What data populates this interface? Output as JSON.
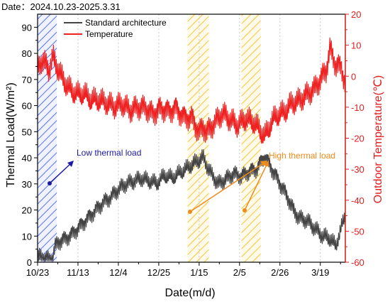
{
  "chart_data": {
    "type": "line",
    "title": "Date：2024.10.23-2025.3.31",
    "xlabel": "Date(m/d)",
    "ylabel_left": "Thermal Load(W/m²)",
    "ylabel_right": "Outdoor Temperature(℃)",
    "x_ticks": [
      "10/23",
      "11/13",
      "12/4",
      "12/25",
      "1/15",
      "2/5",
      "2/26",
      "3/19"
    ],
    "ylim_left": [
      0,
      95
    ],
    "y_ticks_left": [
      0,
      10,
      20,
      30,
      40,
      50,
      60,
      70,
      80,
      90
    ],
    "ylim_right": [
      -60,
      20
    ],
    "y_ticks_right": [
      -60,
      -50,
      -40,
      -30,
      -20,
      -10,
      0,
      10,
      20
    ],
    "x_range_days": [
      0,
      160
    ],
    "legend": {
      "placement": "top-left",
      "entries": [
        {
          "label": "Standard architecture",
          "color": "#444444"
        },
        {
          "label": "Temperature",
          "color": "#ee2222"
        }
      ]
    },
    "series": [
      {
        "name": "Standard architecture",
        "axis": "left",
        "color": "#444444",
        "x_days": [
          0,
          3,
          6,
          8,
          9,
          11,
          14,
          18,
          22,
          26,
          30,
          34,
          38,
          42,
          46,
          50,
          54,
          58,
          62,
          66,
          70,
          74,
          78,
          82,
          86,
          90,
          94,
          98,
          102,
          106,
          110,
          114,
          118,
          121,
          124,
          127,
          130,
          133,
          136,
          140,
          144,
          148,
          152,
          155,
          158,
          160
        ],
        "values": [
          2,
          2,
          1,
          2,
          6,
          8,
          9,
          11,
          14,
          17,
          20,
          23,
          25,
          28,
          30,
          31,
          32,
          31,
          30,
          33,
          32,
          34,
          36,
          38,
          40,
          34,
          30,
          32,
          34,
          33,
          35,
          36,
          41,
          37,
          33,
          29,
          25,
          20,
          17,
          16,
          13,
          10,
          9,
          6,
          13,
          18
        ]
      },
      {
        "name": "Temperature",
        "axis": "right",
        "color": "#ee2222",
        "x_days": [
          0,
          2,
          4,
          6,
          8,
          10,
          13,
          16,
          20,
          24,
          28,
          32,
          36,
          40,
          44,
          48,
          52,
          56,
          60,
          64,
          68,
          72,
          76,
          80,
          84,
          86,
          88,
          92,
          96,
          100,
          104,
          108,
          112,
          116,
          118,
          121,
          124,
          128,
          132,
          136,
          140,
          144,
          148,
          150,
          152,
          155,
          158,
          160
        ],
        "values": [
          3,
          5,
          4,
          2,
          6,
          3,
          -1,
          -4,
          -6,
          -6,
          -8,
          -8,
          -9,
          -10,
          -9,
          -11,
          -10,
          -10,
          -12,
          -10,
          -11,
          -10,
          -13,
          -13,
          -18,
          -16,
          -18,
          -15,
          -12,
          -14,
          -16,
          -14,
          -15,
          -18,
          -20,
          -16,
          -13,
          -12,
          -9,
          -8,
          -6,
          -4,
          0,
          2,
          9,
          4,
          3,
          -2
        ]
      }
    ],
    "highlight_bands": [
      {
        "label": "Low thermal load",
        "from_day": 0,
        "to_day": 10,
        "color": "#4466ee"
      },
      {
        "label": "High thermal load",
        "from_day": 78,
        "to_day": 89,
        "color": "#f5c025"
      },
      {
        "label": "High thermal load",
        "from_day": 106,
        "to_day": 116,
        "color": "#f5c025"
      }
    ],
    "annotations": [
      {
        "text": "Low thermal load",
        "color": "#1a1aa6"
      },
      {
        "text": "High thermal load",
        "color": "#f08a1a"
      }
    ],
    "grid": "vertical-dotted"
  }
}
